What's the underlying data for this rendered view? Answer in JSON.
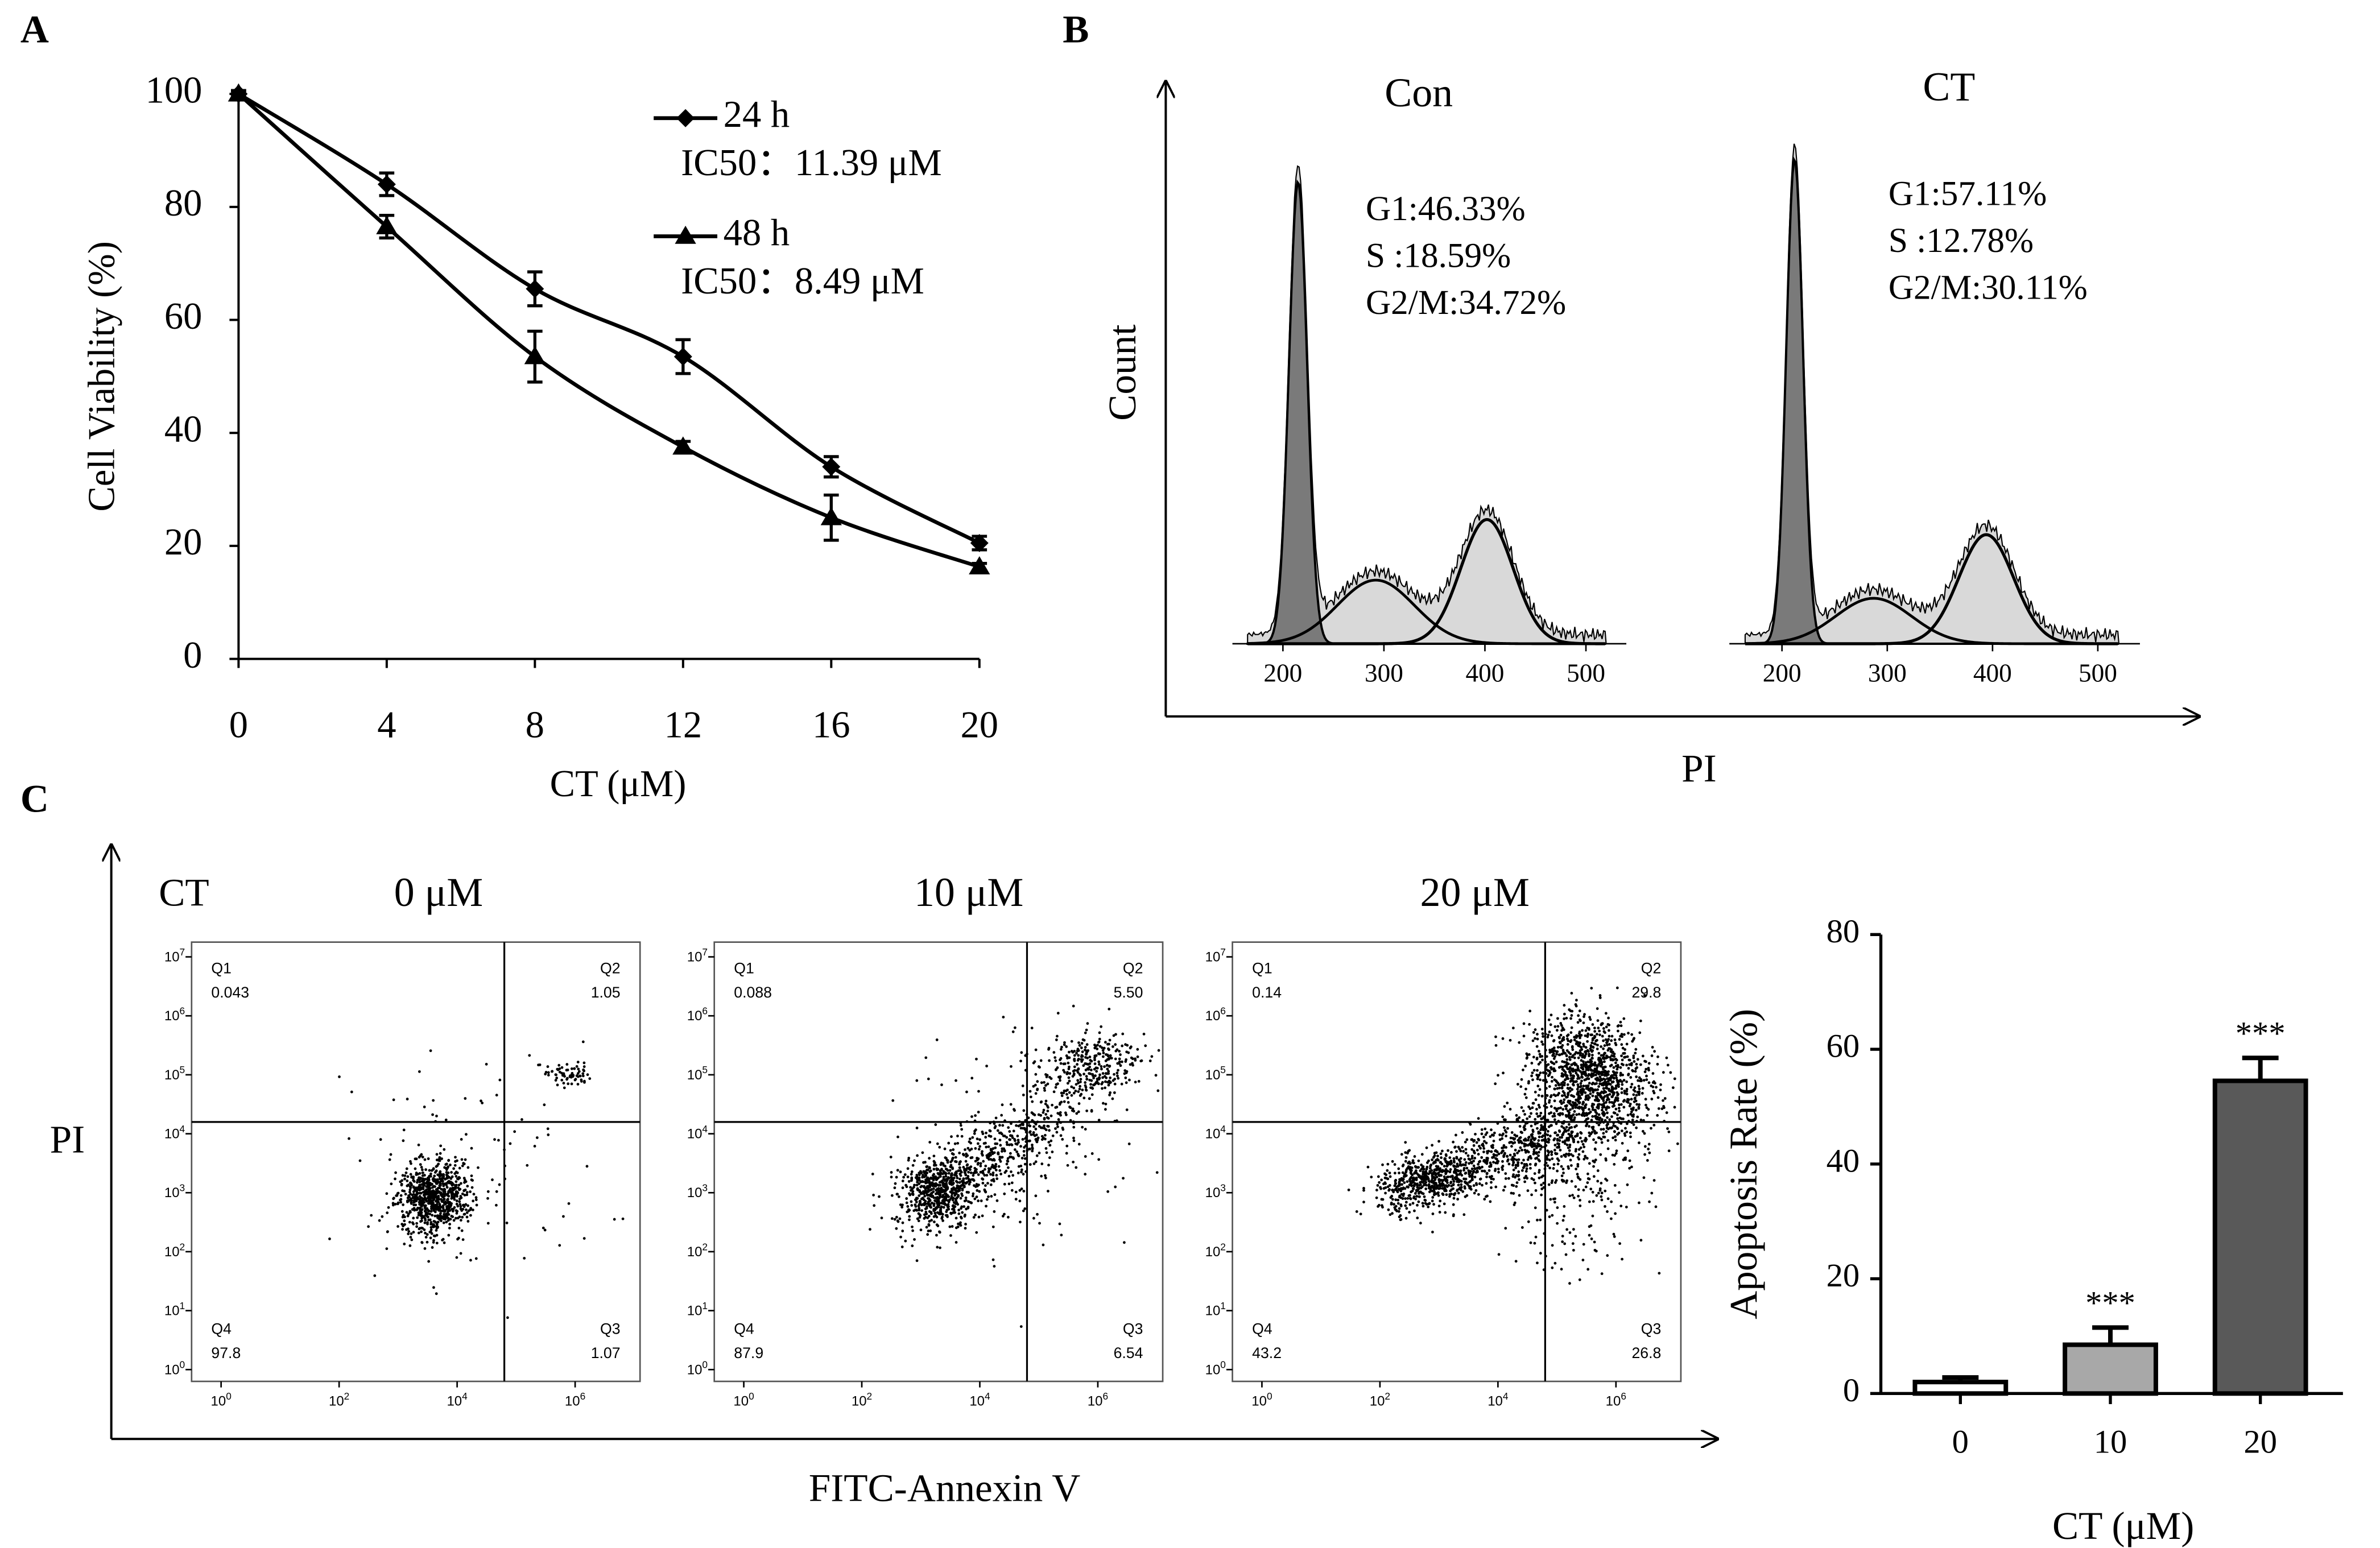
{
  "chart_data": [
    {
      "type": "line",
      "panel": "A",
      "x": [
        0,
        4,
        8,
        12,
        16,
        20
      ],
      "xlim": [
        0,
        20
      ],
      "xticks": [
        0,
        4,
        8,
        12,
        16,
        20
      ],
      "ylim": [
        0,
        100
      ],
      "yticks": [
        0,
        20,
        40,
        60,
        80,
        100
      ],
      "xlabel": "CT (μM)",
      "ylabel": "Cell Viability (%)",
      "legend": "upper right",
      "series": [
        {
          "name": "24 h",
          "color": "#000000",
          "marker": "diamond",
          "values": [
            100,
            84,
            65.5,
            53.5,
            34,
            20.5
          ],
          "errors": [
            0.6,
            2,
            3,
            3,
            1.8,
            1.2
          ],
          "annotation": "IC50：11.39 μM"
        },
        {
          "name": "48 h",
          "color": "#000000",
          "marker": "triangle",
          "values": [
            100,
            76.5,
            53.5,
            37.5,
            25,
            16.3
          ],
          "errors": [
            0.6,
            2,
            4.5,
            1,
            4,
            0.6
          ],
          "annotation": "IC50：8.49 μM"
        }
      ]
    },
    {
      "type": "flow-histogram",
      "panel": "B",
      "xlabel": "PI",
      "ylabel": "Count",
      "xlim": [
        150,
        540
      ],
      "xticks": [
        200,
        300,
        400,
        500
      ],
      "subplots": [
        {
          "title": "Con",
          "values": [
            46.33,
            18.59,
            34.72
          ],
          "value_labels": [
            "G1:46.33%",
            "S :18.59%",
            "G2/M:34.72%"
          ]
        },
        {
          "title": "CT",
          "values": [
            57.11,
            12.78,
            30.11
          ],
          "value_labels": [
            "G1:57.11%",
            "S :12.78%",
            "G2/M:30.11%"
          ]
        }
      ]
    },
    {
      "type": "flow-scatter",
      "panel": "C",
      "prefix": "CT",
      "xlabel": "FITC-Annexin V",
      "ylabel": "PI",
      "log_base": 10,
      "xlim": [
        -0.5,
        7.1
      ],
      "xticks": [
        0,
        2,
        4,
        6
      ],
      "ylim": [
        -0.2,
        7.25
      ],
      "yticks": [
        0,
        1,
        2,
        3,
        4,
        5,
        6,
        7
      ],
      "quadrants": [
        "Q1",
        "Q2",
        "Q3",
        "Q4"
      ],
      "subplots": [
        {
          "title": "0 μM",
          "values": [
            0.043,
            1.05,
            1.07,
            97.8
          ],
          "value_labels": [
            "0.043",
            "1.05",
            "1.07",
            "97.8"
          ]
        },
        {
          "title": "10 μM",
          "values": [
            0.088,
            5.5,
            6.54,
            87.9
          ],
          "value_labels": [
            "0.088",
            "5.50",
            "6.54",
            "87.9"
          ]
        },
        {
          "title": "20 μM",
          "values": [
            0.14,
            29.8,
            26.8,
            43.2
          ],
          "value_labels": [
            "0.14",
            "29.8",
            "26.8",
            "43.2"
          ]
        }
      ]
    },
    {
      "type": "bar",
      "categories": [
        "0",
        "10",
        "20"
      ],
      "values": [
        2,
        8.5,
        54.5
      ],
      "errors": [
        0.8,
        3,
        4
      ],
      "colors": [
        "#ffffff",
        "#a8a8a8",
        "#595959"
      ],
      "significance": [
        null,
        "***",
        "***"
      ],
      "ylim": [
        0,
        80
      ],
      "yticks": [
        0,
        20,
        40,
        60,
        80
      ],
      "xlabel": "CT (μM)",
      "ylabel": "Apoptosis Rate (%)"
    }
  ]
}
